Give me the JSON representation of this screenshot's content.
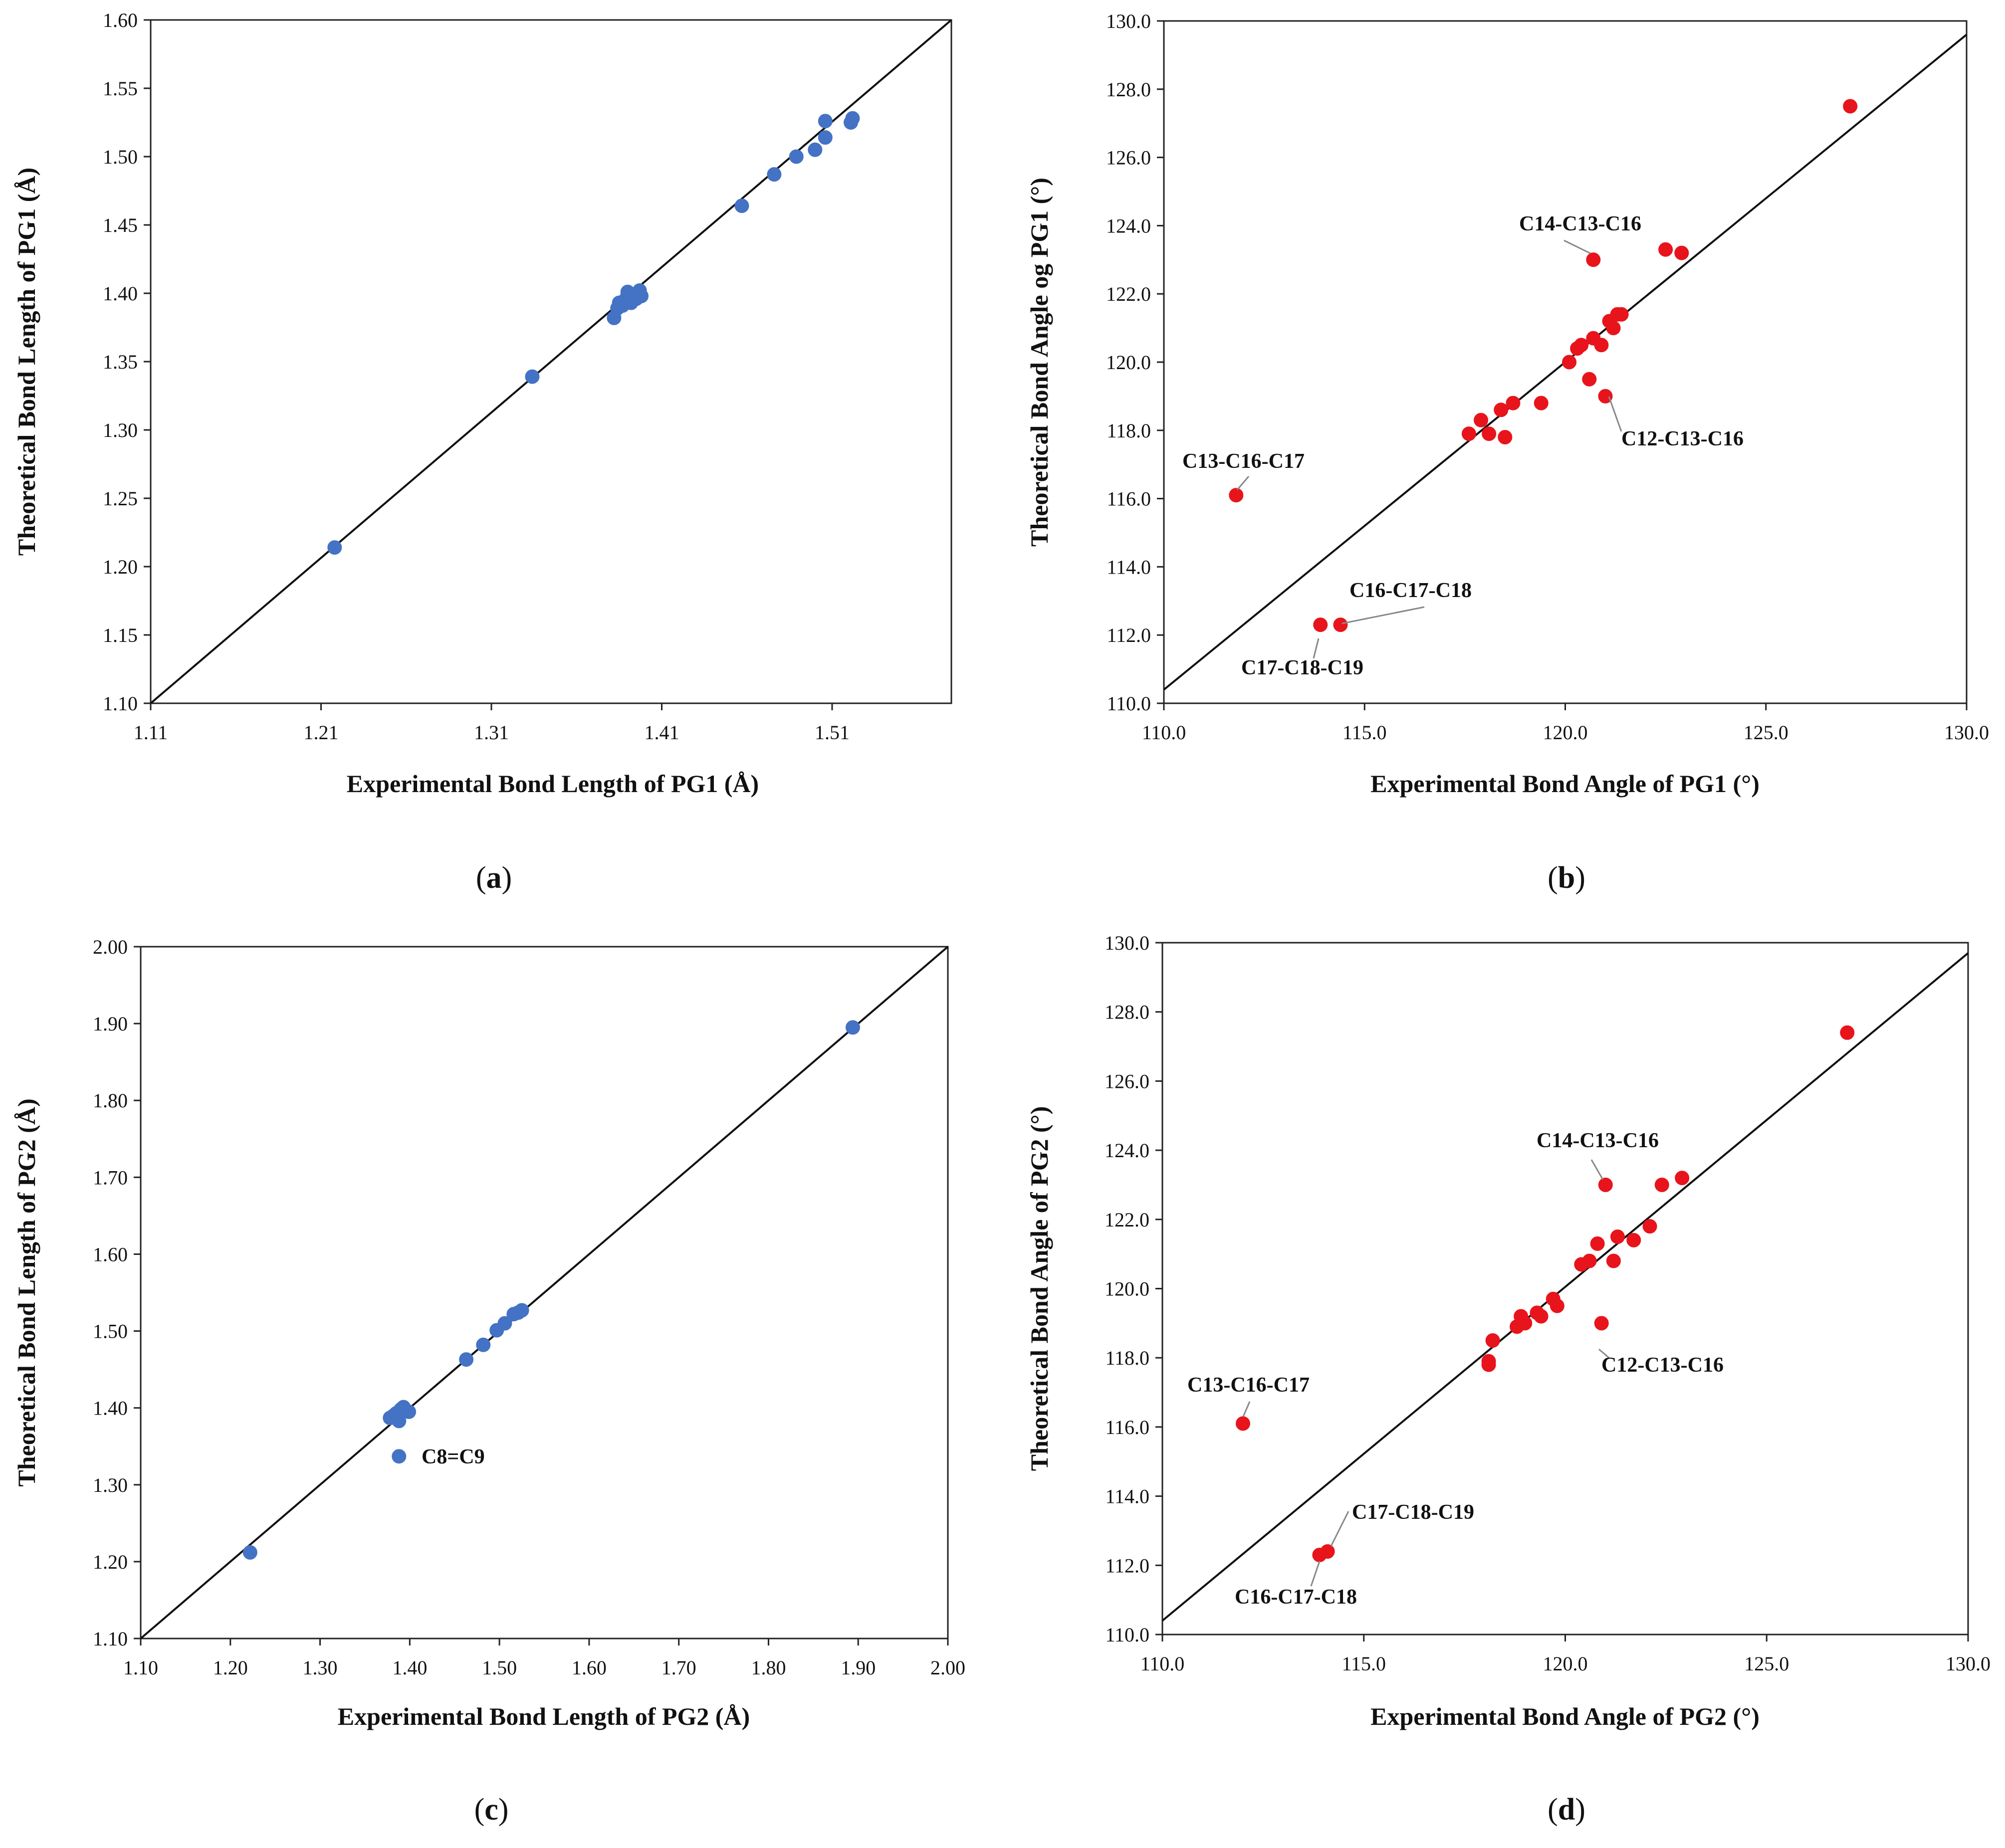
{
  "chart_data": [
    {
      "id": "a",
      "type": "scatter",
      "panel_label": "a",
      "xlabel": "Experimental Bond Length of PG1 (Å)",
      "ylabel": "Theoretical Bond Length of PG1 (Å)",
      "xlim": [
        1.11,
        1.58
      ],
      "ylim": [
        1.1,
        1.6
      ],
      "xticks": [
        "1.11",
        "1.21",
        "1.31",
        "1.41",
        "1.51"
      ],
      "xtick_values": [
        1.11,
        1.21,
        1.31,
        1.41,
        1.51
      ],
      "yticks": [
        "1.10",
        "1.15",
        "1.20",
        "1.25",
        "1.30",
        "1.35",
        "1.40",
        "1.45",
        "1.50",
        "1.55",
        "1.60"
      ],
      "ytick_values": [
        1.1,
        1.15,
        1.2,
        1.25,
        1.3,
        1.35,
        1.4,
        1.45,
        1.5,
        1.55,
        1.6
      ],
      "marker_color": "#4472c4",
      "reference_line": [
        [
          1.11,
          1.1
        ],
        [
          1.58,
          1.6
        ]
      ],
      "points": [
        [
          1.218,
          1.214
        ],
        [
          1.334,
          1.339
        ],
        [
          1.457,
          1.464
        ],
        [
          1.476,
          1.487
        ],
        [
          1.489,
          1.5
        ],
        [
          1.5,
          1.505
        ],
        [
          1.506,
          1.514
        ],
        [
          1.506,
          1.526
        ],
        [
          1.521,
          1.525
        ],
        [
          1.522,
          1.528
        ],
        [
          1.382,
          1.382
        ],
        [
          1.384,
          1.389
        ],
        [
          1.385,
          1.393
        ],
        [
          1.387,
          1.391
        ],
        [
          1.389,
          1.396
        ],
        [
          1.39,
          1.401
        ],
        [
          1.392,
          1.393
        ],
        [
          1.394,
          1.399
        ],
        [
          1.395,
          1.396
        ],
        [
          1.397,
          1.402
        ],
        [
          1.398,
          1.398
        ]
      ],
      "annotations": []
    },
    {
      "id": "b",
      "type": "scatter",
      "panel_label": "b",
      "xlabel": "Experimental Bond Angle of PG1 (°)",
      "ylabel": "Theoretical Bond Angle og PG1 (°)",
      "xlim": [
        110.0,
        130.0
      ],
      "ylim": [
        110.0,
        130.0
      ],
      "xticks": [
        "110.0",
        "115.0",
        "120.0",
        "125.0",
        "130.0"
      ],
      "xtick_values": [
        110,
        115,
        120,
        125,
        130
      ],
      "yticks": [
        "110.0",
        "112.0",
        "114.0",
        "116.0",
        "118.0",
        "120.0",
        "122.0",
        "124.0",
        "126.0",
        "128.0",
        "130.0"
      ],
      "ytick_values": [
        110,
        112,
        114,
        116,
        118,
        120,
        122,
        124,
        126,
        128,
        130
      ],
      "marker_color": "#e8141c",
      "reference_line": [
        [
          110.0,
          110.4
        ],
        [
          130.0,
          129.6
        ]
      ],
      "points": [
        [
          111.8,
          116.1
        ],
        [
          113.9,
          112.3
        ],
        [
          114.4,
          112.3
        ],
        [
          117.6,
          117.9
        ],
        [
          117.9,
          118.3
        ],
        [
          118.1,
          117.9
        ],
        [
          118.4,
          118.6
        ],
        [
          118.5,
          117.8
        ],
        [
          118.7,
          118.8
        ],
        [
          119.4,
          118.8
        ],
        [
          120.1,
          120.0
        ],
        [
          120.3,
          120.4
        ],
        [
          120.4,
          120.5
        ],
        [
          120.6,
          119.5
        ],
        [
          120.7,
          120.7
        ],
        [
          120.9,
          120.5
        ],
        [
          121.0,
          119.0
        ],
        [
          121.1,
          121.2
        ],
        [
          121.2,
          121.0
        ],
        [
          121.3,
          121.4
        ],
        [
          121.4,
          121.4
        ],
        [
          120.7,
          123.0
        ],
        [
          122.5,
          123.3
        ],
        [
          122.9,
          123.2
        ],
        [
          127.1,
          127.5
        ]
      ],
      "annotations": [
        {
          "label": "C14-C13-C16",
          "point": [
            120.7,
            123.0
          ]
        },
        {
          "label": "C13-C16-C17",
          "point": [
            111.8,
            116.1
          ]
        },
        {
          "label": "C12-C13-C16",
          "point": [
            121.0,
            119.0
          ]
        },
        {
          "label": "C16-C17-C18",
          "point": [
            114.4,
            112.3
          ]
        },
        {
          "label": "C17-C18-C19",
          "point": [
            113.9,
            112.3
          ]
        }
      ]
    },
    {
      "id": "c",
      "type": "scatter",
      "panel_label": "c",
      "xlabel": "Experimental Bond Length of PG2 (Å)",
      "ylabel": "Theoretical Bond Length of PG2 (Å)",
      "xlim": [
        1.1,
        2.0
      ],
      "ylim": [
        1.1,
        2.0
      ],
      "xticks": [
        "1.10",
        "1.20",
        "1.30",
        "1.40",
        "1.50",
        "1.60",
        "1.70",
        "1.80",
        "1.90",
        "2.00"
      ],
      "xtick_values": [
        1.1,
        1.2,
        1.3,
        1.4,
        1.5,
        1.6,
        1.7,
        1.8,
        1.9,
        2.0
      ],
      "yticks": [
        "1.10",
        "1.20",
        "1.30",
        "1.40",
        "1.50",
        "1.60",
        "1.70",
        "1.80",
        "1.90",
        "2.00"
      ],
      "ytick_values": [
        1.1,
        1.2,
        1.3,
        1.4,
        1.5,
        1.6,
        1.7,
        1.8,
        1.9,
        2.0
      ],
      "marker_color": "#4472c4",
      "reference_line": [
        [
          1.1,
          1.1
        ],
        [
          2.0,
          2.0
        ]
      ],
      "points": [
        [
          1.222,
          1.212
        ],
        [
          1.388,
          1.337
        ],
        [
          1.378,
          1.387
        ],
        [
          1.382,
          1.39
        ],
        [
          1.385,
          1.393
        ],
        [
          1.388,
          1.383
        ],
        [
          1.39,
          1.398
        ],
        [
          1.393,
          1.401
        ],
        [
          1.396,
          1.396
        ],
        [
          1.399,
          1.395
        ],
        [
          1.463,
          1.463
        ],
        [
          1.482,
          1.482
        ],
        [
          1.497,
          1.501
        ],
        [
          1.506,
          1.51
        ],
        [
          1.516,
          1.522
        ],
        [
          1.521,
          1.524
        ],
        [
          1.525,
          1.527
        ],
        [
          1.894,
          1.895
        ]
      ],
      "annotations": [
        {
          "label": "C8=C9",
          "point": [
            1.388,
            1.337
          ]
        }
      ]
    },
    {
      "id": "d",
      "type": "scatter",
      "panel_label": "d",
      "xlabel": "Experimental Bond Angle of PG2 (°)",
      "ylabel": "Theoretical Bond Angle of PG2 (°)",
      "xlim": [
        110.0,
        130.0
      ],
      "ylim": [
        110.0,
        130.0
      ],
      "xticks": [
        "110.0",
        "115.0",
        "120.0",
        "125.0",
        "130.0"
      ],
      "xtick_values": [
        110,
        115,
        120,
        125,
        130
      ],
      "yticks": [
        "110.0",
        "112.0",
        "114.0",
        "116.0",
        "118.0",
        "120.0",
        "122.0",
        "124.0",
        "126.0",
        "128.0",
        "130.0"
      ],
      "ytick_values": [
        110,
        112,
        114,
        116,
        118,
        120,
        122,
        124,
        126,
        128,
        130
      ],
      "marker_color": "#e8141c",
      "reference_line": [
        [
          110.0,
          110.4
        ],
        [
          130.0,
          129.7
        ]
      ],
      "points": [
        [
          112.0,
          116.1
        ],
        [
          113.9,
          112.3
        ],
        [
          114.1,
          112.4
        ],
        [
          118.1,
          117.8
        ],
        [
          118.1,
          117.9
        ],
        [
          118.2,
          118.5
        ],
        [
          118.8,
          118.9
        ],
        [
          118.9,
          119.2
        ],
        [
          119.0,
          119.0
        ],
        [
          119.3,
          119.3
        ],
        [
          119.4,
          119.2
        ],
        [
          119.7,
          119.7
        ],
        [
          119.8,
          119.5
        ],
        [
          120.4,
          120.7
        ],
        [
          120.6,
          120.8
        ],
        [
          120.8,
          121.3
        ],
        [
          120.9,
          119.0
        ],
        [
          121.2,
          120.8
        ],
        [
          121.3,
          121.5
        ],
        [
          121.7,
          121.4
        ],
        [
          122.1,
          121.8
        ],
        [
          121.0,
          123.0
        ],
        [
          122.4,
          123.0
        ],
        [
          122.9,
          123.2
        ],
        [
          127.0,
          127.4
        ]
      ],
      "annotations": [
        {
          "label": "C14-C13-C16",
          "point": [
            121.0,
            123.0
          ]
        },
        {
          "label": "C13-C16-C17",
          "point": [
            112.0,
            116.1
          ]
        },
        {
          "label": "C12-C13-C16",
          "point": [
            120.9,
            119.0
          ]
        },
        {
          "label": "C17-C18-C19",
          "point": [
            114.1,
            112.4
          ]
        },
        {
          "label": "C16-C17-C18",
          "point": [
            113.9,
            112.3
          ]
        }
      ]
    }
  ]
}
